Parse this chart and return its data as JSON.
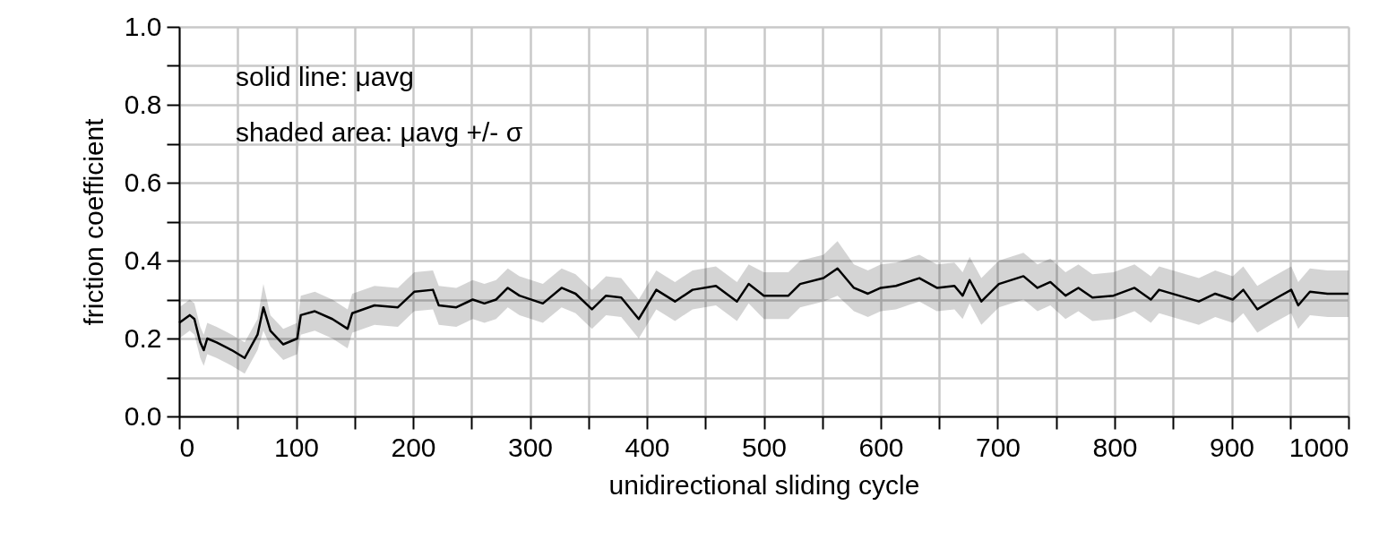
{
  "chart_data": {
    "type": "line",
    "xlabel": "unidirectional sliding cycle",
    "ylabel": "friction coefficient",
    "annotations": [
      "solid line: μavg",
      "shaded area: μavg +/- σ"
    ],
    "series": [
      {
        "color": "#000000",
        "x": [
          0,
          9,
          13,
          18,
          21,
          24,
          32,
          45,
          56,
          67,
          72,
          78,
          89,
          101,
          104,
          116,
          131,
          144,
          148,
          167,
          187,
          201,
          217,
          222,
          237,
          251,
          261,
          271,
          281,
          291,
          311,
          327,
          339,
          353,
          365,
          378,
          393,
          408,
          424,
          439,
          459,
          477,
          487,
          500,
          521,
          531,
          551,
          563,
          577,
          589,
          600,
          613,
          633,
          648,
          663,
          670,
          676,
          686,
          701,
          722,
          734,
          745,
          758,
          769,
          781,
          799,
          817,
          831,
          838,
          855,
          872,
          886,
          901,
          910,
          922,
          936,
          951,
          957,
          967,
          982,
          1000
        ],
        "values": [
          0.24,
          0.26,
          0.25,
          0.19,
          0.17,
          0.2,
          0.19,
          0.17,
          0.15,
          0.21,
          0.28,
          0.22,
          0.185,
          0.2,
          0.26,
          0.27,
          0.25,
          0.225,
          0.265,
          0.285,
          0.28,
          0.32,
          0.325,
          0.285,
          0.28,
          0.3,
          0.29,
          0.3,
          0.33,
          0.31,
          0.29,
          0.33,
          0.315,
          0.275,
          0.31,
          0.305,
          0.25,
          0.325,
          0.295,
          0.325,
          0.335,
          0.295,
          0.34,
          0.31,
          0.31,
          0.34,
          0.355,
          0.38,
          0.33,
          0.315,
          0.33,
          0.335,
          0.355,
          0.33,
          0.335,
          0.31,
          0.35,
          0.295,
          0.34,
          0.36,
          0.33,
          0.345,
          0.31,
          0.33,
          0.305,
          0.31,
          0.33,
          0.3,
          0.325,
          0.31,
          0.295,
          0.315,
          0.3,
          0.325,
          0.275,
          0.3,
          0.325,
          0.285,
          0.32,
          0.315,
          0.315
        ],
        "lower": [
          0.2,
          0.22,
          0.21,
          0.15,
          0.13,
          0.16,
          0.15,
          0.13,
          0.11,
          0.17,
          0.22,
          0.18,
          0.145,
          0.16,
          0.21,
          0.22,
          0.2,
          0.175,
          0.215,
          0.235,
          0.23,
          0.27,
          0.275,
          0.235,
          0.23,
          0.25,
          0.24,
          0.25,
          0.28,
          0.26,
          0.24,
          0.28,
          0.265,
          0.225,
          0.26,
          0.255,
          0.2,
          0.275,
          0.245,
          0.275,
          0.285,
          0.245,
          0.29,
          0.25,
          0.25,
          0.28,
          0.295,
          0.31,
          0.27,
          0.255,
          0.27,
          0.275,
          0.295,
          0.27,
          0.275,
          0.25,
          0.29,
          0.235,
          0.28,
          0.3,
          0.27,
          0.285,
          0.25,
          0.27,
          0.245,
          0.25,
          0.27,
          0.24,
          0.265,
          0.25,
          0.235,
          0.255,
          0.24,
          0.265,
          0.215,
          0.24,
          0.265,
          0.225,
          0.26,
          0.255,
          0.255
        ],
        "upper": [
          0.28,
          0.3,
          0.29,
          0.23,
          0.21,
          0.24,
          0.23,
          0.21,
          0.19,
          0.25,
          0.34,
          0.26,
          0.225,
          0.24,
          0.31,
          0.32,
          0.3,
          0.275,
          0.315,
          0.335,
          0.33,
          0.37,
          0.375,
          0.335,
          0.33,
          0.35,
          0.34,
          0.35,
          0.38,
          0.36,
          0.34,
          0.38,
          0.365,
          0.325,
          0.36,
          0.355,
          0.3,
          0.375,
          0.345,
          0.375,
          0.385,
          0.345,
          0.39,
          0.37,
          0.37,
          0.4,
          0.415,
          0.45,
          0.39,
          0.375,
          0.39,
          0.395,
          0.415,
          0.39,
          0.395,
          0.37,
          0.41,
          0.355,
          0.4,
          0.42,
          0.39,
          0.405,
          0.37,
          0.39,
          0.365,
          0.37,
          0.39,
          0.36,
          0.385,
          0.37,
          0.355,
          0.375,
          0.36,
          0.385,
          0.335,
          0.36,
          0.385,
          0.345,
          0.38,
          0.375,
          0.375
        ]
      }
    ],
    "xlim": [
      0,
      1000
    ],
    "ylim": [
      0,
      1
    ],
    "xticks": [
      0,
      {
        "value": 50,
        "label": null
      },
      100,
      {
        "value": 150,
        "label": null
      },
      200,
      {
        "value": 250,
        "label": null
      },
      300,
      {
        "value": 350,
        "label": null
      },
      400,
      {
        "value": 450,
        "label": null
      },
      500,
      {
        "value": 550,
        "label": null
      },
      600,
      {
        "value": 650,
        "label": null
      },
      700,
      {
        "value": 750,
        "label": null
      },
      800,
      {
        "value": 850,
        "label": null
      },
      900,
      {
        "value": 950,
        "label": null
      },
      1000
    ],
    "yticks": [
      {
        "value": 0,
        "label": "0.0"
      },
      {
        "value": 0.1,
        "label": null
      },
      {
        "value": 0.2,
        "label": "0.2"
      },
      {
        "value": 0.3,
        "label": null
      },
      {
        "value": 0.4,
        "label": "0.4"
      },
      {
        "value": 0.5,
        "label": null
      },
      {
        "value": 0.6,
        "label": "0.6"
      },
      {
        "value": 0.7,
        "label": null
      },
      {
        "value": 0.8,
        "label": "0.8"
      },
      {
        "value": 0.9,
        "label": null
      },
      {
        "value": 1,
        "label": "1.0"
      }
    ],
    "grid": true,
    "marker": "none",
    "line_style": "solid"
  }
}
